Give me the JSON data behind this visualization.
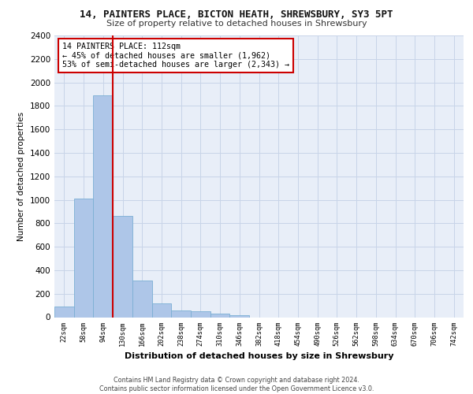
{
  "title_line1": "14, PAINTERS PLACE, BICTON HEATH, SHREWSBURY, SY3 5PT",
  "title_line2": "Size of property relative to detached houses in Shrewsbury",
  "xlabel": "Distribution of detached houses by size in Shrewsbury",
  "ylabel": "Number of detached properties",
  "bin_labels": [
    "22sqm",
    "58sqm",
    "94sqm",
    "130sqm",
    "166sqm",
    "202sqm",
    "238sqm",
    "274sqm",
    "310sqm",
    "346sqm",
    "382sqm",
    "418sqm",
    "454sqm",
    "490sqm",
    "526sqm",
    "562sqm",
    "598sqm",
    "634sqm",
    "670sqm",
    "706sqm",
    "742sqm"
  ],
  "bar_values": [
    90,
    1010,
    1890,
    860,
    310,
    115,
    58,
    50,
    30,
    15,
    0,
    0,
    0,
    0,
    0,
    0,
    0,
    0,
    0,
    0,
    0
  ],
  "bar_color": "#aec6e8",
  "bar_edge_color": "#7bafd4",
  "grid_color": "#c8d4e8",
  "background_color": "#e8eef8",
  "vline_color": "#cc0000",
  "vline_pos": 2.5,
  "annotation_text": "14 PAINTERS PLACE: 112sqm\n← 45% of detached houses are smaller (1,962)\n53% of semi-detached houses are larger (2,343) →",
  "annotation_box_facecolor": "#ffffff",
  "annotation_box_edgecolor": "#cc0000",
  "ylim": [
    0,
    2400
  ],
  "yticks": [
    0,
    200,
    400,
    600,
    800,
    1000,
    1200,
    1400,
    1600,
    1800,
    2000,
    2200,
    2400
  ],
  "footer_line1": "Contains HM Land Registry data © Crown copyright and database right 2024.",
  "footer_line2": "Contains public sector information licensed under the Open Government Licence v3.0."
}
